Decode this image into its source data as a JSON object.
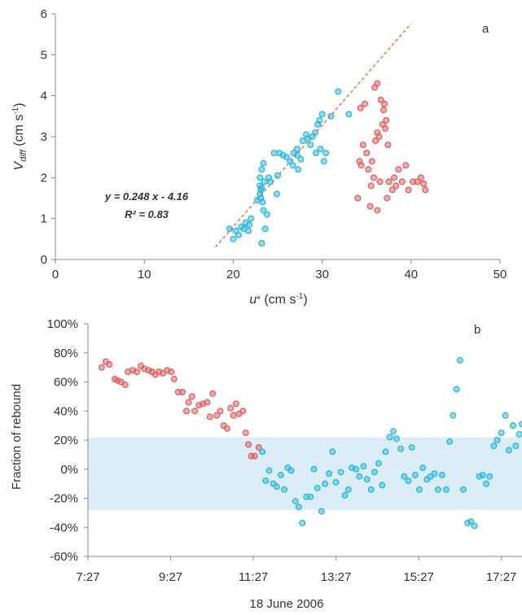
{
  "chart_data": [
    {
      "panel": "a",
      "type": "scatter",
      "xlabel": "u* (cm s-1)",
      "ylabel": "Vdiff (cm s-1)",
      "xlim": [
        0,
        50
      ],
      "ylim": [
        0,
        6
      ],
      "x_ticks": [
        "0",
        "10",
        "20",
        "30",
        "40",
        "50"
      ],
      "y_ticks": [
        "0",
        "1",
        "2",
        "3",
        "4",
        "5",
        "6"
      ],
      "grid": false,
      "colors": {
        "blue": "#29b6d8",
        "red": "#e05a5a",
        "fit_line": "#f07850"
      },
      "equation": "y = 0.248 x - 4.16",
      "r2": "R² = 0.83",
      "fit": {
        "slope": 0.248,
        "intercept": -4.16,
        "x_range": [
          18,
          40
        ]
      },
      "series": [
        {
          "color": "blue",
          "points": [
            [
              19.6,
              0.75
            ],
            [
              20.0,
              0.5
            ],
            [
              20.3,
              0.7
            ],
            [
              20.6,
              0.6
            ],
            [
              20.9,
              0.8
            ],
            [
              21.2,
              0.75
            ],
            [
              21.4,
              0.9
            ],
            [
              21.7,
              0.7
            ],
            [
              21.8,
              0.85
            ],
            [
              22.0,
              1.0
            ],
            [
              22.7,
              1.45
            ],
            [
              23.0,
              1.6
            ],
            [
              23.0,
              1.8
            ],
            [
              23.1,
              1.7
            ],
            [
              23.2,
              1.75
            ],
            [
              23.0,
              2.0
            ],
            [
              23.2,
              2.2
            ],
            [
              23.4,
              2.35
            ],
            [
              23.1,
              1.5
            ],
            [
              23.5,
              1.9
            ],
            [
              23.3,
              1.4
            ],
            [
              23.4,
              1.2
            ],
            [
              23.6,
              0.75
            ],
            [
              23.2,
              0.4
            ],
            [
              24.0,
              2.0
            ],
            [
              24.2,
              1.9
            ],
            [
              23.8,
              1.1
            ],
            [
              24.6,
              2.6
            ],
            [
              25.2,
              2.6
            ],
            [
              25.6,
              2.55
            ],
            [
              24.9,
              1.6
            ],
            [
              25.0,
              2.05
            ],
            [
              26.0,
              2.5
            ],
            [
              26.4,
              2.4
            ],
            [
              26.7,
              2.3
            ],
            [
              27.2,
              2.55
            ],
            [
              27.2,
              2.7
            ],
            [
              27.6,
              2.45
            ],
            [
              27.3,
              2.2
            ],
            [
              27.8,
              2.9
            ],
            [
              28.2,
              3.05
            ],
            [
              28.4,
              2.95
            ],
            [
              28.7,
              2.8
            ],
            [
              28.9,
              3.0
            ],
            [
              29.2,
              3.1
            ],
            [
              29.5,
              3.3
            ],
            [
              29.7,
              3.4
            ],
            [
              30.0,
              3.55
            ],
            [
              29.3,
              2.6
            ],
            [
              29.8,
              2.7
            ],
            [
              30.2,
              2.4
            ],
            [
              30.4,
              2.6
            ],
            [
              31.0,
              3.5
            ],
            [
              31.8,
              4.1
            ],
            [
              33.0,
              3.55
            ],
            [
              26.8,
              2.6
            ]
          ]
        },
        {
          "color": "red",
          "points": [
            [
              34.0,
              1.5
            ],
            [
              34.2,
              2.4
            ],
            [
              34.4,
              2.3
            ],
            [
              34.6,
              2.8
            ],
            [
              34.3,
              3.7
            ],
            [
              34.8,
              3.8
            ],
            [
              35.0,
              2.6
            ],
            [
              35.2,
              2.2
            ],
            [
              35.4,
              1.3
            ],
            [
              35.5,
              1.8
            ],
            [
              35.6,
              2.4
            ],
            [
              35.8,
              2.0
            ],
            [
              36.0,
              2.9
            ],
            [
              36.2,
              4.3
            ],
            [
              35.9,
              4.2
            ],
            [
              36.2,
              3.1
            ],
            [
              36.4,
              3.0
            ],
            [
              36.6,
              3.9
            ],
            [
              36.8,
              3.3
            ],
            [
              36.9,
              3.65
            ],
            [
              36.2,
              1.2
            ],
            [
              36.5,
              1.9
            ],
            [
              37.0,
              3.8
            ],
            [
              37.1,
              3.2
            ],
            [
              37.2,
              3.4
            ],
            [
              37.4,
              2.8
            ],
            [
              37.3,
              1.5
            ],
            [
              37.5,
              1.9
            ],
            [
              37.9,
              1.7
            ],
            [
              38.1,
              2.0
            ],
            [
              38.3,
              1.8
            ],
            [
              38.6,
              2.2
            ],
            [
              39.0,
              1.9
            ],
            [
              39.4,
              2.3
            ],
            [
              39.7,
              1.7
            ],
            [
              40.2,
              1.9
            ],
            [
              40.7,
              1.9
            ],
            [
              41.1,
              2.0
            ],
            [
              41.4,
              1.85
            ],
            [
              41.6,
              1.7
            ]
          ]
        }
      ]
    },
    {
      "panel": "b",
      "type": "scatter",
      "xlabel": "18 June 2006",
      "ylabel": "Fraction of rebound",
      "xlim": [
        "7:27",
        "17:57"
      ],
      "ylim": [
        -0.6,
        1.0
      ],
      "x_ticks": [
        "7:27",
        "9:27",
        "11:27",
        "13:27",
        "15:27",
        "17:27"
      ],
      "y_ticks": [
        "-60%",
        "-40%",
        "-20%",
        "0%",
        "20%",
        "40%",
        "60%",
        "80%",
        "100%"
      ],
      "grid": false,
      "band": {
        "low": -0.28,
        "high": 0.22,
        "color": "#dbeef8"
      },
      "colors": {
        "blue": "#29b6d8",
        "red": "#e05a5a"
      },
      "series": [
        {
          "color": "red",
          "points": [
            [
              "7:47",
              0.7
            ],
            [
              "7:53",
              0.74
            ],
            [
              "7:58",
              0.72
            ],
            [
              "8:06",
              0.62
            ],
            [
              "8:10",
              0.61
            ],
            [
              "8:15",
              0.6
            ],
            [
              "8:21",
              0.58
            ],
            [
              "8:25",
              0.67
            ],
            [
              "8:32",
              0.68
            ],
            [
              "8:38",
              0.67
            ],
            [
              "8:44",
              0.71
            ],
            [
              "8:49",
              0.69
            ],
            [
              "8:55",
              0.68
            ],
            [
              "9:00",
              0.67
            ],
            [
              "9:05",
              0.65
            ],
            [
              "9:10",
              0.67
            ],
            [
              "9:16",
              0.66
            ],
            [
              "9:22",
              0.68
            ],
            [
              "9:28",
              0.67
            ],
            [
              "9:32",
              0.62
            ],
            [
              "9:38",
              0.53
            ],
            [
              "9:44",
              0.53
            ],
            [
              "9:50",
              0.4
            ],
            [
              "9:53",
              0.46
            ],
            [
              "9:58",
              0.5
            ],
            [
              "10:02",
              0.4
            ],
            [
              "10:08",
              0.44
            ],
            [
              "10:14",
              0.45
            ],
            [
              "10:20",
              0.46
            ],
            [
              "10:24",
              0.36
            ],
            [
              "10:28",
              0.52
            ],
            [
              "10:34",
              0.37
            ],
            [
              "10:39",
              0.4
            ],
            [
              "10:44",
              0.3
            ],
            [
              "10:49",
              0.28
            ],
            [
              "10:54",
              0.42
            ],
            [
              "10:58",
              0.37
            ],
            [
              "11:02",
              0.45
            ],
            [
              "11:06",
              0.38
            ],
            [
              "11:12",
              0.4
            ],
            [
              "11:16",
              0.25
            ],
            [
              "11:20",
              0.17
            ],
            [
              "11:24",
              0.09
            ],
            [
              "11:29",
              0.09
            ],
            [
              "11:35",
              0.15
            ]
          ]
        },
        {
          "color": "blue",
          "points": [
            [
              "11:40",
              0.12
            ],
            [
              "11:45",
              -0.08
            ],
            [
              "11:50",
              -0.01
            ],
            [
              "11:56",
              -0.1
            ],
            [
              "12:01",
              -0.12
            ],
            [
              "12:07",
              -0.04
            ],
            [
              "12:12",
              -0.14
            ],
            [
              "12:17",
              0.01
            ],
            [
              "12:22",
              -0.01
            ],
            [
              "12:28",
              -0.22
            ],
            [
              "12:33",
              -0.26
            ],
            [
              "12:38",
              -0.37
            ],
            [
              "12:44",
              -0.19
            ],
            [
              "12:50",
              -0.19
            ],
            [
              "12:55",
              0.0
            ],
            [
              "13:00",
              -0.13
            ],
            [
              "13:06",
              -0.29
            ],
            [
              "13:11",
              -0.1
            ],
            [
              "13:17",
              -0.03
            ],
            [
              "13:22",
              0.12
            ],
            [
              "13:27",
              -0.09
            ],
            [
              "13:34",
              -0.02
            ],
            [
              "13:40",
              -0.18
            ],
            [
              "13:45",
              -0.14
            ],
            [
              "13:50",
              0.01
            ],
            [
              "13:56",
              0.0
            ],
            [
              "14:01",
              -0.05
            ],
            [
              "14:07",
              0.02
            ],
            [
              "14:12",
              -0.07
            ],
            [
              "14:18",
              -0.14
            ],
            [
              "14:23",
              -0.02
            ],
            [
              "14:29",
              0.04
            ],
            [
              "14:34",
              -0.11
            ],
            [
              "14:39",
              0.12
            ],
            [
              "14:45",
              0.22
            ],
            [
              "14:50",
              0.26
            ],
            [
              "14:55",
              0.21
            ],
            [
              "15:01",
              0.14
            ],
            [
              "15:06",
              -0.05
            ],
            [
              "15:12",
              -0.08
            ],
            [
              "15:17",
              0.15
            ],
            [
              "15:22",
              -0.04
            ],
            [
              "15:28",
              -0.14
            ],
            [
              "15:33",
              0.01
            ],
            [
              "15:39",
              -0.07
            ],
            [
              "15:44",
              -0.05
            ],
            [
              "15:50",
              -0.03
            ],
            [
              "15:55",
              -0.14
            ],
            [
              "16:01",
              -0.04
            ],
            [
              "16:07",
              -0.14
            ],
            [
              "16:12",
              0.19
            ],
            [
              "16:17",
              0.37
            ],
            [
              "16:22",
              0.55
            ],
            [
              "16:27",
              0.75
            ],
            [
              "16:32",
              -0.14
            ],
            [
              "16:38",
              -0.37
            ],
            [
              "16:43",
              -0.36
            ],
            [
              "16:48",
              -0.39
            ],
            [
              "16:55",
              -0.05
            ],
            [
              "17:00",
              -0.04
            ],
            [
              "17:05",
              -0.1
            ],
            [
              "17:10",
              -0.05
            ],
            [
              "17:16",
              0.16
            ],
            [
              "17:21",
              0.2
            ],
            [
              "17:27",
              0.25
            ],
            [
              "17:33",
              0.37
            ],
            [
              "17:38",
              0.13
            ],
            [
              "17:44",
              0.3
            ],
            [
              "17:48",
              0.16
            ],
            [
              "17:53",
              0.24
            ],
            [
              "17:57",
              0.31
            ]
          ]
        }
      ]
    }
  ]
}
